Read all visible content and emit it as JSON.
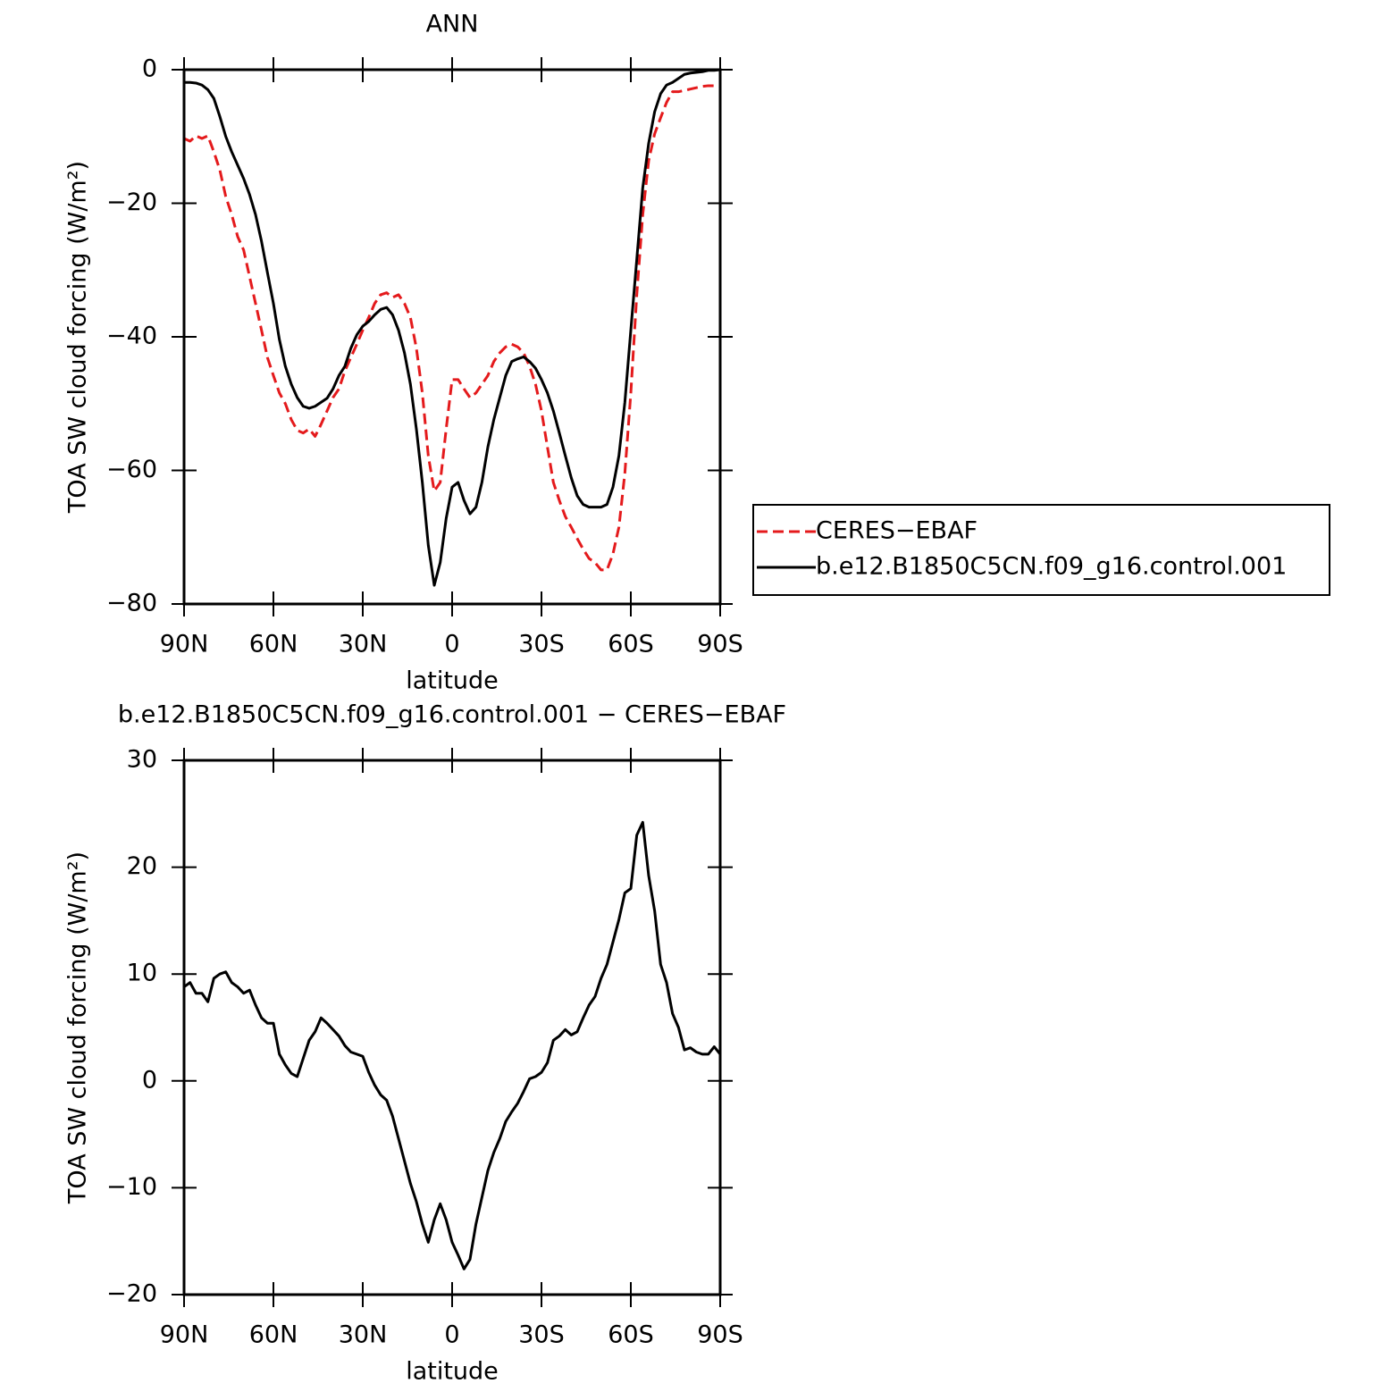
{
  "chart_data": [
    {
      "type": "line",
      "title": "ANN",
      "xlabel": "latitude",
      "ylabel": "TOA SW cloud forcing (W/m²)",
      "xlim": [
        90,
        -90
      ],
      "ylim": [
        -80,
        0
      ],
      "xticks": [
        {
          "value": 90,
          "label": "90N"
        },
        {
          "value": 60,
          "label": "60N"
        },
        {
          "value": 30,
          "label": "30N"
        },
        0,
        {
          "value": -30,
          "label": "30S"
        },
        {
          "value": -60,
          "label": "60S"
        },
        {
          "value": -90,
          "label": "90S"
        }
      ],
      "yticks": [
        {
          "value": -80,
          "label": "−80"
        },
        {
          "value": -60,
          "label": "−60"
        },
        {
          "value": -40,
          "label": "−40"
        },
        {
          "value": -20,
          "label": "−20"
        },
        0
      ],
      "legend": "right",
      "x": [
        90,
        88,
        86,
        84,
        82,
        80,
        78,
        76,
        74,
        72,
        70,
        68,
        66,
        64,
        62,
        60,
        58,
        56,
        54,
        52,
        50,
        48,
        46,
        44,
        42,
        40,
        38,
        36,
        34,
        32,
        30,
        28,
        26,
        24,
        22,
        20,
        18,
        16,
        14,
        12,
        10,
        8,
        6,
        4,
        2,
        0,
        -2,
        -4,
        -6,
        -8,
        -10,
        -12,
        -14,
        -16,
        -18,
        -20,
        -22,
        -24,
        -26,
        -28,
        -30,
        -32,
        -34,
        -36,
        -38,
        -40,
        -42,
        -44,
        -46,
        -48,
        -50,
        -52,
        -54,
        -56,
        -58,
        -60,
        -62,
        -64,
        -66,
        -68,
        -70,
        -72,
        -74,
        -76,
        -78,
        -80,
        -82,
        -84,
        -86,
        -88,
        -90
      ],
      "series": [
        {
          "name": "CERES−EBAF",
          "color": "#e41a1c",
          "dashed": true,
          "values": [
            -10.3,
            -10.7,
            -9.9,
            -10.3,
            -9.9,
            -12.3,
            -15,
            -19,
            -21.7,
            -25,
            -27,
            -31,
            -35,
            -39,
            -43.1,
            -45.8,
            -48.4,
            -50,
            -52.4,
            -54,
            -54.4,
            -53.8,
            -54.9,
            -53.1,
            -51.1,
            -49.1,
            -47.8,
            -45.1,
            -43.1,
            -41.1,
            -39,
            -37.1,
            -35,
            -33.7,
            -33.4,
            -34.1,
            -33.7,
            -35,
            -37.1,
            -41.7,
            -48.4,
            -57.8,
            -63.1,
            -61.8,
            -53.8,
            -46.4,
            -46.4,
            -47.8,
            -49.1,
            -48.4,
            -47.1,
            -45.8,
            -43.7,
            -42.4,
            -41.5,
            -41.1,
            -41.5,
            -42.4,
            -44.4,
            -47.1,
            -51.1,
            -56.5,
            -61.8,
            -64.5,
            -66.9,
            -68.5,
            -70.2,
            -71.8,
            -73.2,
            -73.8,
            -74.9,
            -74.9,
            -72.5,
            -68.5,
            -60.4,
            -48.4,
            -33.7,
            -21.7,
            -13.6,
            -9.6,
            -7.2,
            -4.9,
            -3.3,
            -3.3,
            -3.1,
            -2.9,
            -2.7,
            -2.5,
            -2.4,
            -2.4,
            -2.5
          ]
        },
        {
          "name": "b.e12.B1850C5CN.f09_g16.control.001",
          "color": "#000000",
          "dashed": false,
          "values": [
            -1.9,
            -1.9,
            -2,
            -2.3,
            -3,
            -4.3,
            -7,
            -10,
            -12.3,
            -14.3,
            -16.3,
            -18.7,
            -21.7,
            -25.7,
            -30.4,
            -35,
            -40.4,
            -44.4,
            -47.1,
            -49.1,
            -50.4,
            -50.7,
            -50.4,
            -49.8,
            -49.2,
            -47.8,
            -45.8,
            -44.4,
            -41.7,
            -39.7,
            -38.4,
            -37.7,
            -36.7,
            -35.9,
            -35.6,
            -36.7,
            -39,
            -42.4,
            -47.1,
            -53.8,
            -61.8,
            -71.2,
            -77.2,
            -73.8,
            -67.2,
            -62.5,
            -61.8,
            -64.5,
            -66.5,
            -65.5,
            -61.8,
            -56.5,
            -52.4,
            -49.1,
            -45.8,
            -43.7,
            -43.3,
            -43,
            -43.7,
            -44.7,
            -46.4,
            -48.4,
            -51.1,
            -54.4,
            -57.8,
            -61.1,
            -63.8,
            -65.1,
            -65.5,
            -65.5,
            -65.5,
            -65.1,
            -62.5,
            -57.8,
            -49.8,
            -39,
            -28.4,
            -17.7,
            -11,
            -6.3,
            -3.6,
            -2.3,
            -1.9,
            -1.3,
            -0.7,
            -0.5,
            -0.4,
            -0.3,
            -0.1,
            -0.1,
            0
          ]
        }
      ]
    },
    {
      "type": "line",
      "title": "b.e12.B1850C5CN.f09_g16.control.001 − CERES−EBAF",
      "xlabel": "latitude",
      "ylabel": "TOA SW cloud forcing (W/m²)",
      "xlim": [
        90,
        -90
      ],
      "ylim": [
        -20,
        30
      ],
      "xticks": [
        {
          "value": 90,
          "label": "90N"
        },
        {
          "value": 60,
          "label": "60N"
        },
        {
          "value": 30,
          "label": "30N"
        },
        0,
        {
          "value": -30,
          "label": "30S"
        },
        {
          "value": -60,
          "label": "60S"
        },
        {
          "value": -90,
          "label": "90S"
        }
      ],
      "yticks": [
        {
          "value": -20,
          "label": "−20"
        },
        {
          "value": -10,
          "label": "−10"
        },
        0,
        10,
        20,
        30
      ],
      "x": [
        90,
        88,
        86,
        84,
        82,
        80,
        78,
        76,
        74,
        72,
        70,
        68,
        66,
        64,
        62,
        60,
        58,
        56,
        54,
        52,
        50,
        48,
        46,
        44,
        42,
        40,
        38,
        36,
        34,
        32,
        30,
        28,
        26,
        24,
        22,
        20,
        18,
        16,
        14,
        12,
        10,
        8,
        6,
        4,
        2,
        0,
        -2,
        -4,
        -6,
        -8,
        -10,
        -12,
        -14,
        -16,
        -18,
        -20,
        -22,
        -24,
        -26,
        -28,
        -30,
        -32,
        -34,
        -36,
        -38,
        -40,
        -42,
        -44,
        -46,
        -48,
        -50,
        -52,
        -54,
        -56,
        -58,
        -60,
        -62,
        -64,
        -66,
        -68,
        -70,
        -72,
        -74,
        -76,
        -78,
        -80,
        -82,
        -84,
        -86,
        -88,
        -90
      ],
      "series": [
        {
          "color": "#000000",
          "dashed": false,
          "values": [
            8.8,
            9.2,
            8.2,
            8.2,
            7.4,
            9.6,
            10,
            10.2,
            9.2,
            8.8,
            8.2,
            8.5,
            7.1,
            5.9,
            5.4,
            5.4,
            2.5,
            1.5,
            0.7,
            0.4,
            2.1,
            3.8,
            4.6,
            5.9,
            5.4,
            4.8,
            4.2,
            3.3,
            2.7,
            2.5,
            2.3,
            0.8,
            -0.4,
            -1.3,
            -1.8,
            -3.3,
            -5.4,
            -7.5,
            -9.6,
            -11.3,
            -13.4,
            -15.1,
            -13,
            -11.5,
            -13,
            -15.1,
            -16.3,
            -17.6,
            -16.7,
            -13.4,
            -10.9,
            -8.4,
            -6.7,
            -5.4,
            -3.8,
            -2.9,
            -2.1,
            -1,
            0.2,
            0.4,
            0.8,
            1.7,
            3.8,
            4.2,
            4.8,
            4.3,
            4.6,
            5.9,
            7.1,
            7.9,
            9.6,
            10.9,
            13,
            15.1,
            17.6,
            18,
            23,
            24.2,
            19.2,
            15.9,
            10.9,
            9.2,
            6.3,
            5,
            2.9,
            3.1,
            2.7,
            2.5,
            2.5,
            3.2,
            2.5
          ]
        }
      ]
    }
  ]
}
